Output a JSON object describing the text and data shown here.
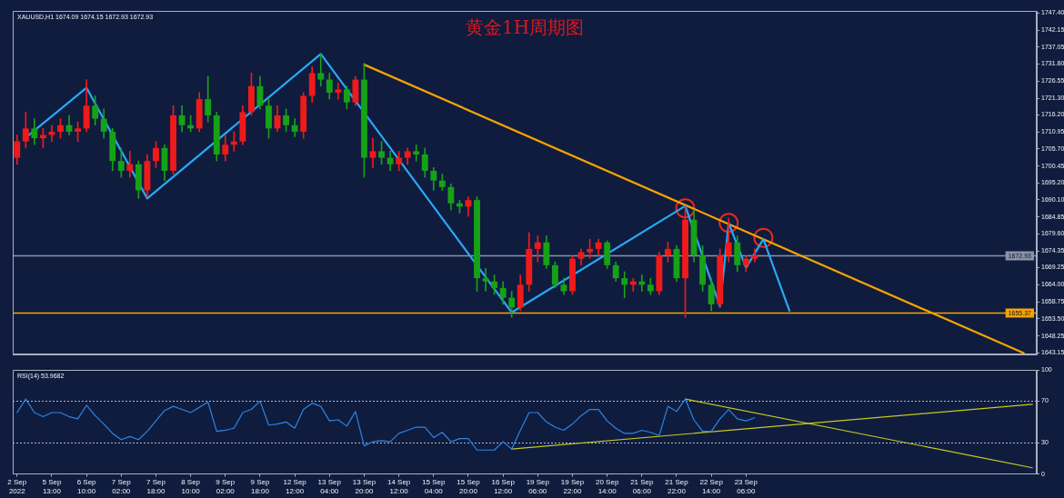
{
  "chart_data": [
    {
      "type": "candlestick",
      "title": "黄金1H周期图",
      "annotations": [
        "XAUUSD,H1 1674.09 1674.15 1672.93 1672.93"
      ],
      "categories": [
        null,
        null,
        null,
        null,
        null,
        null,
        null,
        null,
        null,
        null,
        null,
        null,
        null,
        null,
        null,
        null,
        null,
        null,
        null,
        null,
        null,
        null,
        null,
        null,
        null,
        null,
        null,
        null,
        null,
        null,
        null,
        null,
        null,
        null,
        null,
        null,
        null,
        null,
        null,
        null,
        null,
        null,
        null,
        null,
        null,
        null,
        null,
        null,
        null,
        null,
        null,
        null,
        null,
        null,
        null,
        null,
        null,
        null,
        null,
        null,
        null,
        null,
        null,
        null,
        null,
        null,
        null,
        null,
        null,
        null,
        null,
        null,
        null,
        null,
        null,
        null,
        null,
        null,
        null,
        null,
        null,
        null,
        null,
        null,
        null,
        null,
        null,
        null,
        null,
        null,
        null,
        null,
        null,
        null,
        null,
        null,
        null,
        null,
        null,
        null,
        null,
        null,
        null,
        null,
        null,
        null,
        null,
        null,
        null,
        null,
        null,
        null,
        null,
        null,
        null,
        null,
        null,
        null
      ],
      "ohlc": [
        [
          1703,
          1710,
          1701,
          1708
        ],
        [
          1708,
          1717,
          1706,
          1712
        ],
        [
          1712,
          1715,
          1707,
          1709
        ],
        [
          1709,
          1712,
          1706,
          1710
        ],
        [
          1710,
          1713,
          1708,
          1711
        ],
        [
          1711,
          1715,
          1709,
          1713
        ],
        [
          1713,
          1716,
          1710,
          1711
        ],
        [
          1711,
          1714,
          1708,
          1712
        ],
        [
          1712,
          1727,
          1711,
          1719
        ],
        [
          1719,
          1722,
          1713,
          1715
        ],
        [
          1715,
          1718,
          1709,
          1711
        ],
        [
          1711,
          1712,
          1699,
          1702
        ],
        [
          1702,
          1706,
          1697,
          1699
        ],
        [
          1699,
          1705,
          1697,
          1701
        ],
        [
          1701,
          1702,
          1690.5,
          1693
        ],
        [
          1693,
          1704,
          1691,
          1702
        ],
        [
          1702,
          1708,
          1700,
          1706
        ],
        [
          1706,
          1707,
          1696,
          1699
        ],
        [
          1699,
          1719,
          1698,
          1716
        ],
        [
          1716,
          1719,
          1711,
          1713
        ],
        [
          1713,
          1716,
          1711,
          1712
        ],
        [
          1712,
          1723,
          1711,
          1721
        ],
        [
          1721,
          1728,
          1714,
          1716
        ],
        [
          1716,
          1717,
          1702,
          1704
        ],
        [
          1704,
          1710,
          1702,
          1707
        ],
        [
          1707,
          1711,
          1705,
          1708
        ],
        [
          1708,
          1719,
          1707,
          1717
        ],
        [
          1717,
          1729,
          1716,
          1725
        ],
        [
          1725,
          1728,
          1718,
          1719
        ],
        [
          1719,
          1721,
          1709,
          1712
        ],
        [
          1712,
          1719,
          1711,
          1716
        ],
        [
          1716,
          1718,
          1711,
          1713
        ],
        [
          1713,
          1715,
          1709.5,
          1711
        ],
        [
          1711,
          1723,
          1709,
          1722
        ],
        [
          1722,
          1731,
          1720,
          1729
        ],
        [
          1729,
          1735,
          1725,
          1727
        ],
        [
          1727,
          1729,
          1721,
          1723
        ],
        [
          1723,
          1726,
          1721,
          1724
        ],
        [
          1724,
          1725,
          1718,
          1720
        ],
        [
          1720,
          1728,
          1719,
          1727
        ],
        [
          1727,
          1732,
          1697,
          1703
        ],
        [
          1703,
          1709,
          1700,
          1705
        ],
        [
          1705,
          1708,
          1701,
          1703
        ],
        [
          1703,
          1705,
          1699,
          1701
        ],
        [
          1701,
          1705,
          1699,
          1703
        ],
        [
          1703,
          1706,
          1701,
          1705
        ],
        [
          1705,
          1707,
          1702,
          1704
        ],
        [
          1704,
          1706,
          1697,
          1699
        ],
        [
          1699,
          1700,
          1693,
          1696
        ],
        [
          1696,
          1698,
          1693,
          1694
        ],
        [
          1694,
          1695,
          1687,
          1689
        ],
        [
          1689,
          1690,
          1686,
          1688
        ],
        [
          1688,
          1691,
          1685,
          1690
        ],
        [
          1690,
          1691,
          1662,
          1666
        ],
        [
          1666,
          1669,
          1662,
          1665
        ],
        [
          1665,
          1667,
          1661,
          1663
        ],
        [
          1663,
          1665,
          1658,
          1660
        ],
        [
          1660,
          1662,
          1654,
          1657
        ],
        [
          1657,
          1667,
          1656,
          1664
        ],
        [
          1664,
          1680,
          1662,
          1675
        ],
        [
          1675,
          1679,
          1671,
          1677
        ],
        [
          1677,
          1679,
          1669,
          1670
        ],
        [
          1670,
          1671,
          1663,
          1664
        ],
        [
          1664,
          1666,
          1661,
          1662
        ],
        [
          1662,
          1673,
          1661,
          1672
        ],
        [
          1672,
          1675,
          1670,
          1674
        ],
        [
          1674,
          1678,
          1672,
          1675
        ],
        [
          1675,
          1678,
          1673,
          1677
        ],
        [
          1677,
          1677.5,
          1669,
          1670
        ],
        [
          1670,
          1671,
          1665,
          1666
        ],
        [
          1666,
          1668,
          1660,
          1664
        ],
        [
          1664,
          1666,
          1662,
          1665
        ],
        [
          1665,
          1667,
          1662,
          1664
        ],
        [
          1664,
          1666,
          1661,
          1662
        ],
        [
          1662,
          1674,
          1661,
          1673
        ],
        [
          1673,
          1677,
          1671,
          1675
        ],
        [
          1675,
          1676,
          1665,
          1666
        ],
        [
          1666,
          1688,
          1654,
          1684
        ],
        [
          1684,
          1687,
          1671,
          1673
        ],
        [
          1673,
          1676,
          1662,
          1664
        ],
        [
          1664,
          1666,
          1656,
          1658
        ],
        [
          1658,
          1675,
          1657,
          1673
        ],
        [
          1673,
          1684.5,
          1671,
          1677
        ],
        [
          1677,
          1679,
          1668,
          1670
        ],
        [
          1670,
          1673,
          1668,
          1672
        ],
        [
          1672,
          1675,
          1671,
          1672.93
        ],
        null,
        null,
        null,
        null,
        null,
        null,
        null,
        null,
        null,
        null,
        null,
        null,
        null,
        null,
        null,
        null,
        null,
        null,
        null,
        null,
        null,
        null,
        null,
        null,
        null,
        null,
        null,
        null,
        null,
        null,
        null,
        null
      ],
      "colors": [
        "#f01a1a",
        "#f01a1a",
        "#17a117",
        "#f01a1a",
        "#f01a1a",
        "#f01a1a",
        "#17a117",
        "#f01a1a",
        "#f01a1a",
        "#17a117",
        "#17a117",
        "#17a117",
        "#17a117",
        "#f01a1a",
        "#17a117",
        "#f01a1a",
        "#f01a1a",
        "#17a117",
        "#f01a1a",
        "#17a117",
        "#17a117",
        "#f01a1a",
        "#17a117",
        "#17a117",
        "#f01a1a",
        "#f01a1a",
        "#f01a1a",
        "#f01a1a",
        "#17a117",
        "#17a117",
        "#f01a1a",
        "#17a117",
        "#17a117",
        "#f01a1a",
        "#f01a1a",
        "#17a117",
        "#17a117",
        "#f01a1a",
        "#17a117",
        "#f01a1a",
        "#17a117",
        "#f01a1a",
        "#17a117",
        "#17a117",
        "#f01a1a",
        "#f01a1a",
        "#17a117",
        "#17a117",
        "#17a117",
        "#17a117",
        "#17a117",
        "#17a117",
        "#f01a1a",
        "#17a117",
        "#17a117",
        "#17a117",
        "#17a117",
        "#17a117",
        "#f01a1a",
        "#f01a1a",
        "#f01a1a",
        "#17a117",
        "#17a117",
        "#17a117",
        "#f01a1a",
        "#f01a1a",
        "#f01a1a",
        "#f01a1a",
        "#17a117",
        "#17a117",
        "#17a117",
        "#f01a1a",
        "#17a117",
        "#17a117",
        "#f01a1a",
        "#f01a1a",
        "#17a117",
        "#f01a1a",
        "#17a117",
        "#17a117",
        "#17a117",
        "#f01a1a",
        "#f01a1a",
        "#17a117",
        "#f01a1a",
        "#f01a1a",
        null,
        null,
        null,
        null,
        null,
        null,
        null,
        null,
        null,
        null,
        null,
        null,
        null,
        null,
        null,
        null,
        null,
        null,
        null,
        null,
        null,
        null,
        null,
        null,
        null,
        null,
        null,
        null,
        null,
        null,
        null,
        null
      ],
      "series": [
        {
          "type": "line",
          "color": "#29a8f5",
          "values": [
            null,
            1709.2,
            null,
            null,
            null,
            null,
            null,
            null,
            1724.5,
            null,
            null,
            null,
            null,
            null,
            null,
            1690.5,
            null,
            null,
            null,
            null,
            null,
            null,
            null,
            null,
            null,
            null,
            null,
            null,
            null,
            null,
            null,
            null,
            null,
            null,
            null,
            1734.9,
            null,
            null,
            null,
            null,
            null,
            null,
            null,
            null,
            null,
            null,
            null,
            null,
            null,
            null,
            null,
            null,
            null,
            null,
            null,
            null,
            null,
            1655.5,
            null,
            null,
            null,
            null,
            null,
            null,
            null,
            null,
            null,
            null,
            null,
            null,
            null,
            null,
            null,
            null,
            null,
            null,
            null,
            1688.2,
            null,
            null,
            null,
            1657.3,
            1683.0,
            null,
            1669.2,
            null,
            1678.0,
            null,
            null,
            1656.0,
            null,
            null,
            null,
            null,
            null,
            null,
            null,
            null,
            null,
            null,
            null,
            null,
            null,
            null,
            null,
            null,
            null,
            null,
            null,
            null,
            null,
            null,
            null,
            null,
            null,
            null,
            null,
            null
          ]
        },
        {
          "type": "line",
          "color": "#f5a300",
          "values": [
            null,
            null,
            null,
            null,
            null,
            null,
            null,
            null,
            null,
            null,
            null,
            null,
            null,
            null,
            null,
            null,
            null,
            null,
            null,
            null,
            null,
            null,
            null,
            null,
            null,
            null,
            null,
            null,
            null,
            null,
            null,
            null,
            null,
            null,
            null,
            null,
            null,
            null,
            null,
            null,
            1731.6,
            null,
            null,
            null,
            null,
            null,
            null,
            null,
            null,
            null,
            null,
            null,
            null,
            null,
            null,
            null,
            null,
            null,
            null,
            null,
            null,
            null,
            null,
            null,
            null,
            null,
            null,
            null,
            null,
            null,
            null,
            null,
            null,
            null,
            null,
            null,
            null,
            null,
            null,
            null,
            null,
            null,
            null,
            null,
            null,
            null,
            null,
            null,
            null,
            null,
            null,
            null,
            null,
            null,
            null,
            null,
            null,
            null,
            null,
            null,
            null,
            null,
            null,
            null,
            null,
            null,
            null,
            null,
            null,
            null,
            null,
            null,
            null,
            null,
            null,
            null,
            1643.0,
            null
          ]
        },
        {
          "type": "scatter",
          "color": "#e8281e",
          "marker": "circle",
          "values": [
            null,
            null,
            null,
            null,
            null,
            null,
            null,
            null,
            null,
            null,
            null,
            null,
            null,
            null,
            null,
            null,
            null,
            null,
            null,
            null,
            null,
            null,
            null,
            null,
            null,
            null,
            null,
            null,
            null,
            null,
            null,
            null,
            null,
            null,
            null,
            null,
            null,
            null,
            null,
            null,
            null,
            null,
            null,
            null,
            null,
            null,
            null,
            null,
            null,
            null,
            null,
            null,
            null,
            null,
            null,
            null,
            null,
            null,
            null,
            null,
            null,
            null,
            null,
            null,
            null,
            null,
            null,
            null,
            null,
            null,
            null,
            null,
            null,
            null,
            null,
            null,
            null,
            1687.5,
            null,
            null,
            null,
            null,
            1683.0,
            null,
            null,
            null,
            1678.4,
            null,
            null,
            null,
            null,
            null,
            null,
            null,
            null,
            null,
            null,
            null,
            null,
            null,
            null,
            null,
            null,
            null,
            null,
            null,
            null,
            null,
            null,
            null,
            null,
            null,
            null,
            null,
            null,
            null,
            null,
            null
          ]
        }
      ],
      "ref_lines": [
        {
          "axis": "y",
          "value": 1672.93,
          "label": "1672.93",
          "color": "#8a92a6"
        },
        {
          "axis": "y",
          "value": 1655.37,
          "label": "1655.37",
          "color": "#f5a300"
        }
      ],
      "ylim": [
        1642.6,
        1748.1
      ],
      "yticks": [
        {
          "value": 1643.15,
          "label": "1643.15"
        },
        {
          "value": 1648.25,
          "label": "1648.25"
        },
        {
          "value": 1653.5,
          "label": "1653.50"
        },
        {
          "value": 1658.75,
          "label": "1658.75"
        },
        {
          "value": 1664,
          "label": "1664.00"
        },
        {
          "value": 1669.25,
          "label": "1669.25"
        },
        {
          "value": 1674.35,
          "label": "1674.35"
        },
        {
          "value": 1679.6,
          "label": "1679.60"
        },
        {
          "value": 1684.85,
          "label": "1684.85"
        },
        {
          "value": 1690.1,
          "label": "1690.10"
        },
        {
          "value": 1695.2,
          "label": "1695.20"
        },
        {
          "value": 1700.45,
          "label": "1700.45"
        },
        {
          "value": 1705.7,
          "label": "1705.70"
        },
        {
          "value": 1710.95,
          "label": "1710.95"
        },
        {
          "value": 1716.2,
          "label": "1716.20"
        },
        {
          "value": 1721.3,
          "label": "1721.30"
        },
        {
          "value": 1726.55,
          "label": "1726.55"
        },
        {
          "value": 1731.8,
          "label": "1731.80"
        },
        {
          "value": 1737.05,
          "label": "1737.05"
        },
        {
          "value": 1742.15,
          "label": "1742.15"
        },
        {
          "value": 1747.4,
          "label": "1747.40"
        }
      ],
      "tick_labels": "y"
    },
    {
      "type": "line",
      "annotations": [
        "RSI(14) 53.9682"
      ],
      "categories": [
        "2 Sep 2022",
        null,
        null,
        null,
        "5 Sep 13:00",
        null,
        null,
        null,
        "6 Sep 10:00",
        null,
        null,
        null,
        "7 Sep 02:00",
        null,
        null,
        null,
        "7 Sep 18:00",
        null,
        null,
        null,
        "8 Sep 10:00",
        null,
        null,
        null,
        "9 Sep 02:00",
        null,
        null,
        null,
        "9 Sep 18:00",
        null,
        null,
        null,
        "12 Sep 12:00",
        null,
        null,
        null,
        "13 Sep 04:00",
        null,
        null,
        null,
        "13 Sep 20:00",
        null,
        null,
        null,
        "14 Sep 12:00",
        null,
        null,
        null,
        "15 Sep 04:00",
        null,
        null,
        null,
        "15 Sep 20:00",
        null,
        null,
        null,
        "16 Sep 12:00",
        null,
        null,
        null,
        "19 Sep 06:00",
        null,
        null,
        null,
        "19 Sep 22:00",
        null,
        null,
        null,
        "20 Sep 14:00",
        null,
        null,
        null,
        "21 Sep 06:00",
        null,
        null,
        null,
        "21 Sep 22:00",
        null,
        null,
        null,
        "22 Sep 14:00",
        null,
        null,
        null,
        "23 Sep 06:00",
        null,
        null,
        null,
        null,
        null,
        null,
        null,
        null,
        null,
        null,
        null,
        null,
        null,
        null,
        null,
        null,
        null,
        null,
        null,
        null,
        null,
        null,
        null,
        null,
        null,
        null,
        null,
        null,
        null,
        null,
        null,
        null,
        null
      ],
      "series": [
        {
          "color": "#2d84e6",
          "values": [
            59,
            72,
            59,
            55,
            59,
            59,
            55,
            53,
            66,
            56,
            48,
            39,
            33,
            36,
            33,
            41,
            51,
            61,
            65,
            62,
            59,
            64,
            69,
            41,
            42,
            44,
            59,
            62,
            70,
            47,
            48,
            50,
            44,
            62,
            68,
            65,
            51,
            52,
            46,
            60,
            27,
            31,
            32,
            31,
            39,
            42,
            45,
            45,
            35,
            40,
            31,
            34,
            34,
            23,
            23,
            23,
            31,
            24,
            42,
            59,
            59,
            50,
            45,
            42,
            48,
            56,
            62,
            62,
            51,
            44,
            39,
            39,
            42,
            40,
            37,
            65,
            60,
            72,
            52,
            41,
            41,
            53,
            62,
            53,
            51,
            54,
            null,
            null,
            null,
            null,
            null,
            null,
            null,
            null,
            null,
            null,
            null,
            null,
            null,
            null,
            null,
            null,
            null,
            null,
            null,
            null,
            null,
            null,
            null,
            null,
            null,
            null,
            null,
            null,
            null,
            null,
            null,
            null
          ]
        },
        {
          "color": "#c8c820",
          "values": [
            null,
            null,
            null,
            null,
            null,
            null,
            null,
            null,
            null,
            null,
            null,
            null,
            null,
            null,
            null,
            null,
            null,
            null,
            null,
            null,
            null,
            null,
            null,
            null,
            null,
            null,
            null,
            null,
            null,
            null,
            null,
            null,
            null,
            null,
            null,
            null,
            null,
            null,
            null,
            null,
            null,
            null,
            null,
            null,
            null,
            null,
            null,
            null,
            null,
            null,
            null,
            null,
            null,
            null,
            null,
            null,
            null,
            24,
            null,
            null,
            null,
            null,
            null,
            null,
            null,
            null,
            null,
            null,
            null,
            null,
            null,
            null,
            null,
            null,
            null,
            null,
            null,
            null,
            null,
            null,
            null,
            null,
            null,
            null,
            null,
            null,
            null,
            null,
            null,
            null,
            null,
            null,
            null,
            null,
            null,
            null,
            null,
            null,
            null,
            null,
            null,
            null,
            null,
            null,
            null,
            null,
            null,
            null,
            null,
            null,
            null,
            null,
            null,
            null,
            null,
            null,
            null,
            67
          ]
        },
        {
          "color": "#c8c820",
          "values": [
            null,
            null,
            null,
            null,
            null,
            null,
            null,
            null,
            null,
            null,
            null,
            null,
            null,
            null,
            null,
            null,
            null,
            null,
            null,
            null,
            null,
            null,
            null,
            null,
            null,
            null,
            null,
            null,
            null,
            null,
            null,
            null,
            null,
            null,
            null,
            null,
            null,
            null,
            null,
            null,
            null,
            null,
            null,
            null,
            null,
            null,
            null,
            null,
            null,
            null,
            null,
            null,
            null,
            null,
            null,
            null,
            null,
            null,
            null,
            null,
            null,
            null,
            null,
            null,
            null,
            null,
            null,
            null,
            null,
            null,
            null,
            null,
            null,
            null,
            null,
            null,
            null,
            72,
            null,
            null,
            null,
            null,
            null,
            null,
            null,
            null,
            null,
            null,
            null,
            null,
            null,
            null,
            null,
            null,
            null,
            null,
            null,
            null,
            null,
            null,
            null,
            null,
            null,
            null,
            null,
            null,
            null,
            null,
            null,
            null,
            null,
            null,
            null,
            null,
            null,
            null,
            null,
            6
          ]
        }
      ],
      "ref_lines": [
        {
          "axis": "y",
          "value": 70,
          "line_style": "dotted",
          "color": "#b4b9c6"
        },
        {
          "axis": "y",
          "value": 30,
          "line_style": "dotted",
          "color": "#b4b9c6"
        }
      ],
      "ylim": [
        0,
        100
      ],
      "yticks": [
        0,
        30,
        70,
        100
      ]
    }
  ]
}
